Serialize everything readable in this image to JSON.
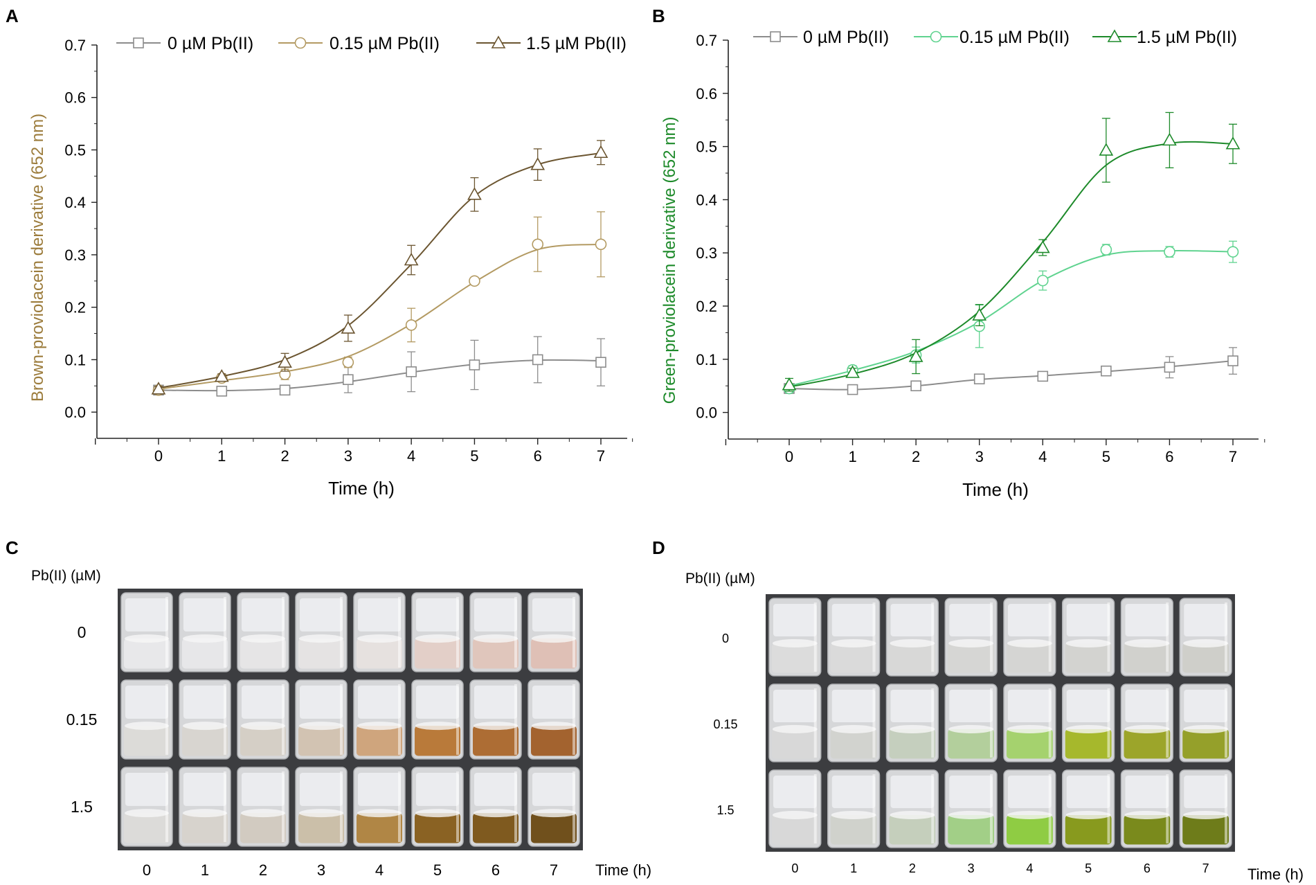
{
  "panel_labels": {
    "a": "A",
    "b": "B",
    "c": "C",
    "d": "D"
  },
  "colors": {
    "axis": "#222222",
    "series_0": "#8c8c8c",
    "series_015_a": "#b39a62",
    "series_15_a": "#6b5530",
    "series_015_b": "#5fd38f",
    "series_15_b": "#1d8a2a",
    "ylabel_a": "#9c7c3c",
    "ylabel_b": "#1d8a2a"
  },
  "chart_data": [
    {
      "type": "line",
      "panel": "A",
      "title": "",
      "xlabel": "Time (h)",
      "ylabel": "Brown-proviolacein derivative (652 nm)",
      "x": [
        0,
        1,
        2,
        3,
        4,
        5,
        6,
        7
      ],
      "xlim": [
        -1,
        7.5
      ],
      "ylim": [
        -0.05,
        0.7
      ],
      "xticks": [
        "0",
        "1",
        "2",
        "3",
        "4",
        "5",
        "6",
        "7"
      ],
      "yticks": [
        "0.0",
        "0.1",
        "0.2",
        "0.3",
        "0.4",
        "0.5",
        "0.6",
        "0.7"
      ],
      "legend": "top",
      "series": [
        {
          "name": "0 µM Pb(II)",
          "marker": "square",
          "color": "#8c8c8c",
          "values": [
            0.042,
            0.04,
            0.042,
            0.062,
            0.077,
            0.09,
            0.1,
            0.095
          ],
          "errors": [
            0.005,
            0.004,
            0.005,
            0.025,
            0.038,
            0.047,
            0.044,
            0.045
          ],
          "fit": [
            0.042,
            0.041,
            0.045,
            0.058,
            0.076,
            0.091,
            0.099,
            0.098
          ]
        },
        {
          "name": "0.15 µM Pb(II)",
          "marker": "circle",
          "color": "#b39a62",
          "values": [
            0.042,
            0.065,
            0.072,
            0.095,
            0.166,
            0.25,
            0.32,
            0.32
          ],
          "errors": [
            0.005,
            0.005,
            0.01,
            0.01,
            0.032,
            0.006,
            0.052,
            0.062
          ],
          "fit": [
            0.044,
            0.06,
            0.077,
            0.106,
            0.168,
            0.248,
            0.31,
            0.32
          ]
        },
        {
          "name": "1.5 µM Pb(II)",
          "marker": "triangle",
          "color": "#6b5530",
          "values": [
            0.044,
            0.068,
            0.095,
            0.16,
            0.29,
            0.415,
            0.472,
            0.495
          ],
          "errors": [
            0.005,
            0.005,
            0.017,
            0.025,
            0.028,
            0.032,
            0.03,
            0.023
          ],
          "fit": [
            0.046,
            0.068,
            0.1,
            0.165,
            0.282,
            0.412,
            0.472,
            0.494
          ]
        }
      ]
    },
    {
      "type": "line",
      "panel": "B",
      "title": "",
      "xlabel": "Time (h)",
      "ylabel": "Green-proviolacein derivative (652 nm)",
      "x": [
        0,
        1,
        2,
        3,
        4,
        5,
        6,
        7
      ],
      "xlim": [
        -1,
        7.5
      ],
      "ylim": [
        -0.05,
        0.7
      ],
      "xticks": [
        "0",
        "1",
        "2",
        "3",
        "4",
        "5",
        "6",
        "7"
      ],
      "yticks": [
        "0.0",
        "0.1",
        "0.2",
        "0.3",
        "0.4",
        "0.5",
        "0.6",
        "0.7"
      ],
      "legend": "top",
      "series": [
        {
          "name": "0 µM Pb(II)",
          "marker": "square",
          "color": "#8c8c8c",
          "values": [
            0.045,
            0.043,
            0.05,
            0.063,
            0.068,
            0.078,
            0.085,
            0.097
          ],
          "errors": [
            0.005,
            0.005,
            0.005,
            0.008,
            0.005,
            0.007,
            0.02,
            0.025
          ],
          "fit": [
            0.045,
            0.043,
            0.05,
            0.062,
            0.069,
            0.077,
            0.086,
            0.097
          ]
        },
        {
          "name": "0.15 µM Pb(II)",
          "marker": "circle",
          "color": "#5fd38f",
          "values": [
            0.045,
            0.08,
            0.108,
            0.162,
            0.248,
            0.306,
            0.302,
            0.302
          ],
          "errors": [
            0.008,
            0.008,
            0.015,
            0.04,
            0.018,
            0.01,
            0.01,
            0.02
          ],
          "fit": [
            0.05,
            0.079,
            0.115,
            0.17,
            0.248,
            0.296,
            0.304,
            0.302
          ]
        },
        {
          "name": "1.5 µM Pb(II)",
          "marker": "triangle",
          "color": "#1d8a2a",
          "values": [
            0.052,
            0.075,
            0.105,
            0.183,
            0.31,
            0.493,
            0.512,
            0.505
          ],
          "errors": [
            0.012,
            0.008,
            0.032,
            0.02,
            0.015,
            0.06,
            0.052,
            0.037
          ],
          "fit": [
            0.048,
            0.072,
            0.112,
            0.19,
            0.32,
            0.465,
            0.506,
            0.505
          ]
        }
      ]
    }
  ],
  "photo_c": {
    "row_title": "Pb(II) (µM)",
    "rows": [
      "0",
      "0.15",
      "1.5"
    ],
    "cols": [
      "0",
      "1",
      "2",
      "3",
      "4",
      "5",
      "6",
      "7"
    ],
    "axis_label": "Time (h)",
    "liquid_colors": [
      [
        "#e8e8ea",
        "#e7e7e9",
        "#e6e5e6",
        "#e5e3e3",
        "#e6e1df",
        "#e3cfc8",
        "#e0c6bc",
        "#dfc0b6"
      ],
      [
        "#dcdbd8",
        "#d8d5d0",
        "#d5cfc6",
        "#d2c3b2",
        "#cfa57d",
        "#b97a3a",
        "#ad6d34",
        "#a3632f"
      ],
      [
        "#dcdbd9",
        "#d7d3cd",
        "#d2cbc1",
        "#cbbfa9",
        "#b08645",
        "#8a6223",
        "#7f5a1f",
        "#70501c"
      ]
    ]
  },
  "photo_d": {
    "row_title": "Pb(II) (µM)",
    "rows": [
      "0",
      "0.15",
      "1.5"
    ],
    "cols": [
      "0",
      "1",
      "2",
      "3",
      "4",
      "5",
      "6",
      "7"
    ],
    "axis_label": "Time (h)",
    "liquid_colors": [
      [
        "#dcdcdc",
        "#dadada",
        "#d8d8d7",
        "#d6d6d4",
        "#d5d5d3",
        "#d3d3d0",
        "#d1d1cd",
        "#cfcfca"
      ],
      [
        "#d8d8d8",
        "#d2d3cf",
        "#c5cfbe",
        "#b3cf9c",
        "#a5d26e",
        "#a6b82c",
        "#9ca52a",
        "#95a02a"
      ],
      [
        "#d8d8d8",
        "#d0d2cc",
        "#c5cfbc",
        "#a2cf87",
        "#8fcc43",
        "#889a1e",
        "#7a8a1c",
        "#6e7c1a"
      ]
    ]
  }
}
